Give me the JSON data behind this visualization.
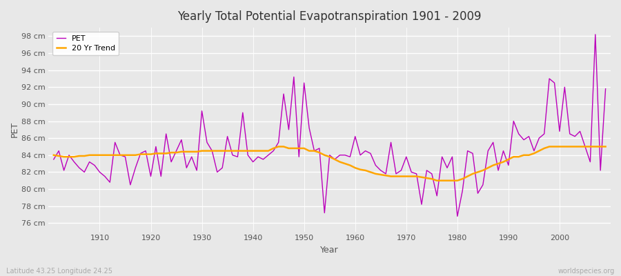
{
  "title": "Yearly Total Potential Evapotranspiration 1901 - 2009",
  "xlabel": "Year",
  "ylabel": "PET",
  "subtitle_left": "Latitude 43.25 Longitude 24.25",
  "subtitle_right": "worldspecies.org",
  "pet_color": "#bb00bb",
  "trend_color": "#ffa500",
  "ylim": [
    75,
    99
  ],
  "yticks": [
    76,
    78,
    80,
    82,
    84,
    86,
    88,
    90,
    92,
    94,
    96,
    98
  ],
  "xlim": [
    1900,
    2010
  ],
  "xticks": [
    1910,
    1920,
    1930,
    1940,
    1950,
    1960,
    1970,
    1980,
    1990,
    2000
  ],
  "years": [
    1901,
    1902,
    1903,
    1904,
    1905,
    1906,
    1907,
    1908,
    1909,
    1910,
    1911,
    1912,
    1913,
    1914,
    1915,
    1916,
    1917,
    1918,
    1919,
    1920,
    1921,
    1922,
    1923,
    1924,
    1925,
    1926,
    1927,
    1928,
    1929,
    1930,
    1931,
    1932,
    1933,
    1934,
    1935,
    1936,
    1937,
    1938,
    1939,
    1940,
    1941,
    1942,
    1943,
    1944,
    1945,
    1946,
    1947,
    1948,
    1949,
    1950,
    1951,
    1952,
    1953,
    1954,
    1955,
    1956,
    1957,
    1958,
    1959,
    1960,
    1961,
    1962,
    1963,
    1964,
    1965,
    1966,
    1967,
    1968,
    1969,
    1970,
    1971,
    1972,
    1973,
    1974,
    1975,
    1976,
    1977,
    1978,
    1979,
    1980,
    1981,
    1982,
    1983,
    1984,
    1985,
    1986,
    1987,
    1988,
    1989,
    1990,
    1991,
    1992,
    1993,
    1994,
    1995,
    1996,
    1997,
    1998,
    1999,
    2000,
    2001,
    2002,
    2003,
    2004,
    2005,
    2006,
    2007,
    2008,
    2009
  ],
  "pet_values": [
    83.5,
    84.5,
    82.2,
    84.0,
    83.2,
    82.5,
    82.0,
    83.2,
    82.8,
    82.0,
    81.5,
    80.8,
    85.5,
    84.0,
    83.8,
    80.5,
    82.5,
    84.2,
    84.5,
    81.5,
    85.0,
    81.5,
    86.5,
    83.2,
    84.5,
    85.8,
    82.5,
    83.8,
    82.2,
    89.2,
    85.5,
    84.5,
    82.0,
    82.5,
    86.2,
    84.0,
    83.8,
    89.0,
    84.0,
    83.2,
    83.8,
    83.5,
    84.0,
    84.5,
    85.5,
    91.2,
    87.0,
    93.2,
    83.8,
    92.5,
    87.2,
    84.5,
    84.8,
    77.2,
    84.0,
    83.5,
    84.0,
    84.0,
    83.8,
    86.2,
    84.0,
    84.5,
    84.2,
    82.8,
    82.2,
    81.8,
    85.5,
    81.8,
    82.2,
    83.8,
    82.0,
    81.8,
    78.2,
    82.2,
    81.8,
    79.2,
    83.8,
    82.5,
    83.8,
    76.8,
    79.8,
    84.5,
    84.2,
    79.5,
    80.5,
    84.5,
    85.5,
    82.2,
    84.5,
    82.8,
    88.0,
    86.5,
    85.8,
    86.2,
    84.5,
    86.0,
    86.5,
    93.0,
    92.5,
    86.8,
    92.0,
    86.5,
    86.2,
    86.8,
    85.0,
    83.2,
    98.2,
    82.2,
    91.8
  ],
  "trend_years": [
    1901,
    1902,
    1903,
    1904,
    1905,
    1906,
    1907,
    1908,
    1909,
    1910,
    1911,
    1912,
    1913,
    1914,
    1915,
    1916,
    1917,
    1918,
    1919,
    1920,
    1921,
    1922,
    1923,
    1924,
    1925,
    1926,
    1927,
    1928,
    1929,
    1930,
    1931,
    1932,
    1933,
    1934,
    1935,
    1936,
    1937,
    1938,
    1939,
    1940,
    1941,
    1942,
    1943,
    1944,
    1945,
    1946,
    1947,
    1948,
    1949,
    1950,
    1951,
    1952,
    1953,
    1954,
    1955,
    1956,
    1957,
    1958,
    1959,
    1960,
    1961,
    1962,
    1963,
    1964,
    1965,
    1966,
    1967,
    1968,
    1969,
    1970,
    1971,
    1972,
    1973,
    1974,
    1975,
    1976,
    1977,
    1978,
    1979,
    1980,
    1981,
    1982,
    1983,
    1984,
    1985,
    1986,
    1987,
    1988,
    1989,
    1990,
    1991,
    1992,
    1993,
    1994,
    1995,
    1996,
    1997,
    1998,
    1999,
    2000,
    2001,
    2002,
    2003,
    2004,
    2005,
    2006,
    2007,
    2008,
    2009
  ],
  "trend_values": [
    84.0,
    83.9,
    83.8,
    83.8,
    83.8,
    83.9,
    83.9,
    84.0,
    84.0,
    84.0,
    84.0,
    84.0,
    84.0,
    84.0,
    84.0,
    84.0,
    84.0,
    84.1,
    84.1,
    84.1,
    84.2,
    84.2,
    84.2,
    84.3,
    84.3,
    84.4,
    84.4,
    84.4,
    84.4,
    84.5,
    84.5,
    84.5,
    84.5,
    84.5,
    84.5,
    84.5,
    84.5,
    84.5,
    84.5,
    84.5,
    84.5,
    84.5,
    84.5,
    84.8,
    85.0,
    85.0,
    84.8,
    84.8,
    84.8,
    84.8,
    84.5,
    84.5,
    84.3,
    84.0,
    83.8,
    83.5,
    83.2,
    83.0,
    82.8,
    82.5,
    82.3,
    82.2,
    82.0,
    81.8,
    81.7,
    81.6,
    81.5,
    81.5,
    81.5,
    81.5,
    81.5,
    81.5,
    81.4,
    81.3,
    81.2,
    81.0,
    81.0,
    81.0,
    81.0,
    81.0,
    81.2,
    81.5,
    81.8,
    82.0,
    82.2,
    82.5,
    82.8,
    83.0,
    83.2,
    83.5,
    83.8,
    83.8,
    84.0,
    84.0,
    84.2,
    84.5,
    84.8,
    85.0,
    85.0,
    85.0,
    85.0,
    85.0,
    85.0,
    85.0,
    85.0,
    85.0,
    85.0,
    85.0,
    85.0
  ]
}
